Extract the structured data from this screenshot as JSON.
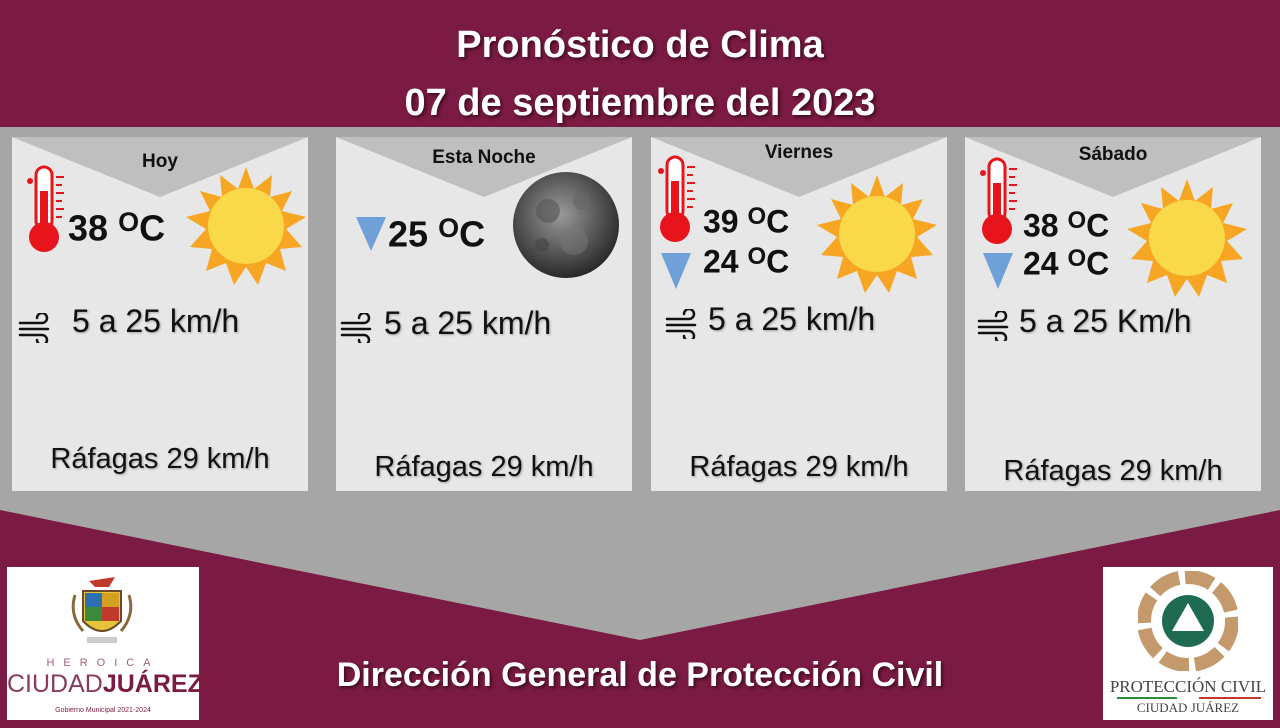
{
  "header": {
    "title": "Pronóstico de Clima",
    "date": "07 de septiembre del 2023"
  },
  "cards": [
    {
      "day": "Hoy",
      "temp_max": "38",
      "unit": "C",
      "wind": "5 a 25 km/h",
      "gusts": "Ráfagas 29 km/h",
      "sky_icon": "sun-icon"
    },
    {
      "day": "Esta Noche",
      "temp_min": "25",
      "unit": "C",
      "wind": "5 a 25 km/h",
      "gusts": "Ráfagas 29 km/h",
      "sky_icon": "moon-icon"
    },
    {
      "day": "Viernes",
      "temp_max": "39",
      "temp_min": "24",
      "unit": "C",
      "wind": "5 a 25 km/h",
      "gusts": "Ráfagas 29 km/h",
      "sky_icon": "sun-icon"
    },
    {
      "day": "Sábado",
      "temp_max": "38",
      "temp_min": "24",
      "unit": "C",
      "wind": "5 a 25 Km/h",
      "gusts": "Ráfagas 29 km/h",
      "sky_icon": "sun-icon"
    }
  ],
  "degree_symbol": "O",
  "footer": {
    "text": "Dirección General de Protección Civil"
  },
  "logos": {
    "left": {
      "line1": "HEROICA",
      "line2a": "CIUDAD",
      "line2b": "JUÁREZ",
      "line3": "Gobierno Municipal 2021-2024"
    },
    "right": {
      "line1": "PROTECCIÓN CIVIL",
      "line2": "CIUDAD JUÁREZ"
    }
  },
  "colors": {
    "maroon": "#7b1a42",
    "gray": "#a6a6a6",
    "card": "#e7e7e7",
    "sun": "#f9d84a",
    "sun_rays": "#f6a623",
    "thermo": "#e8141c",
    "arrow": "#6fa0d8"
  }
}
